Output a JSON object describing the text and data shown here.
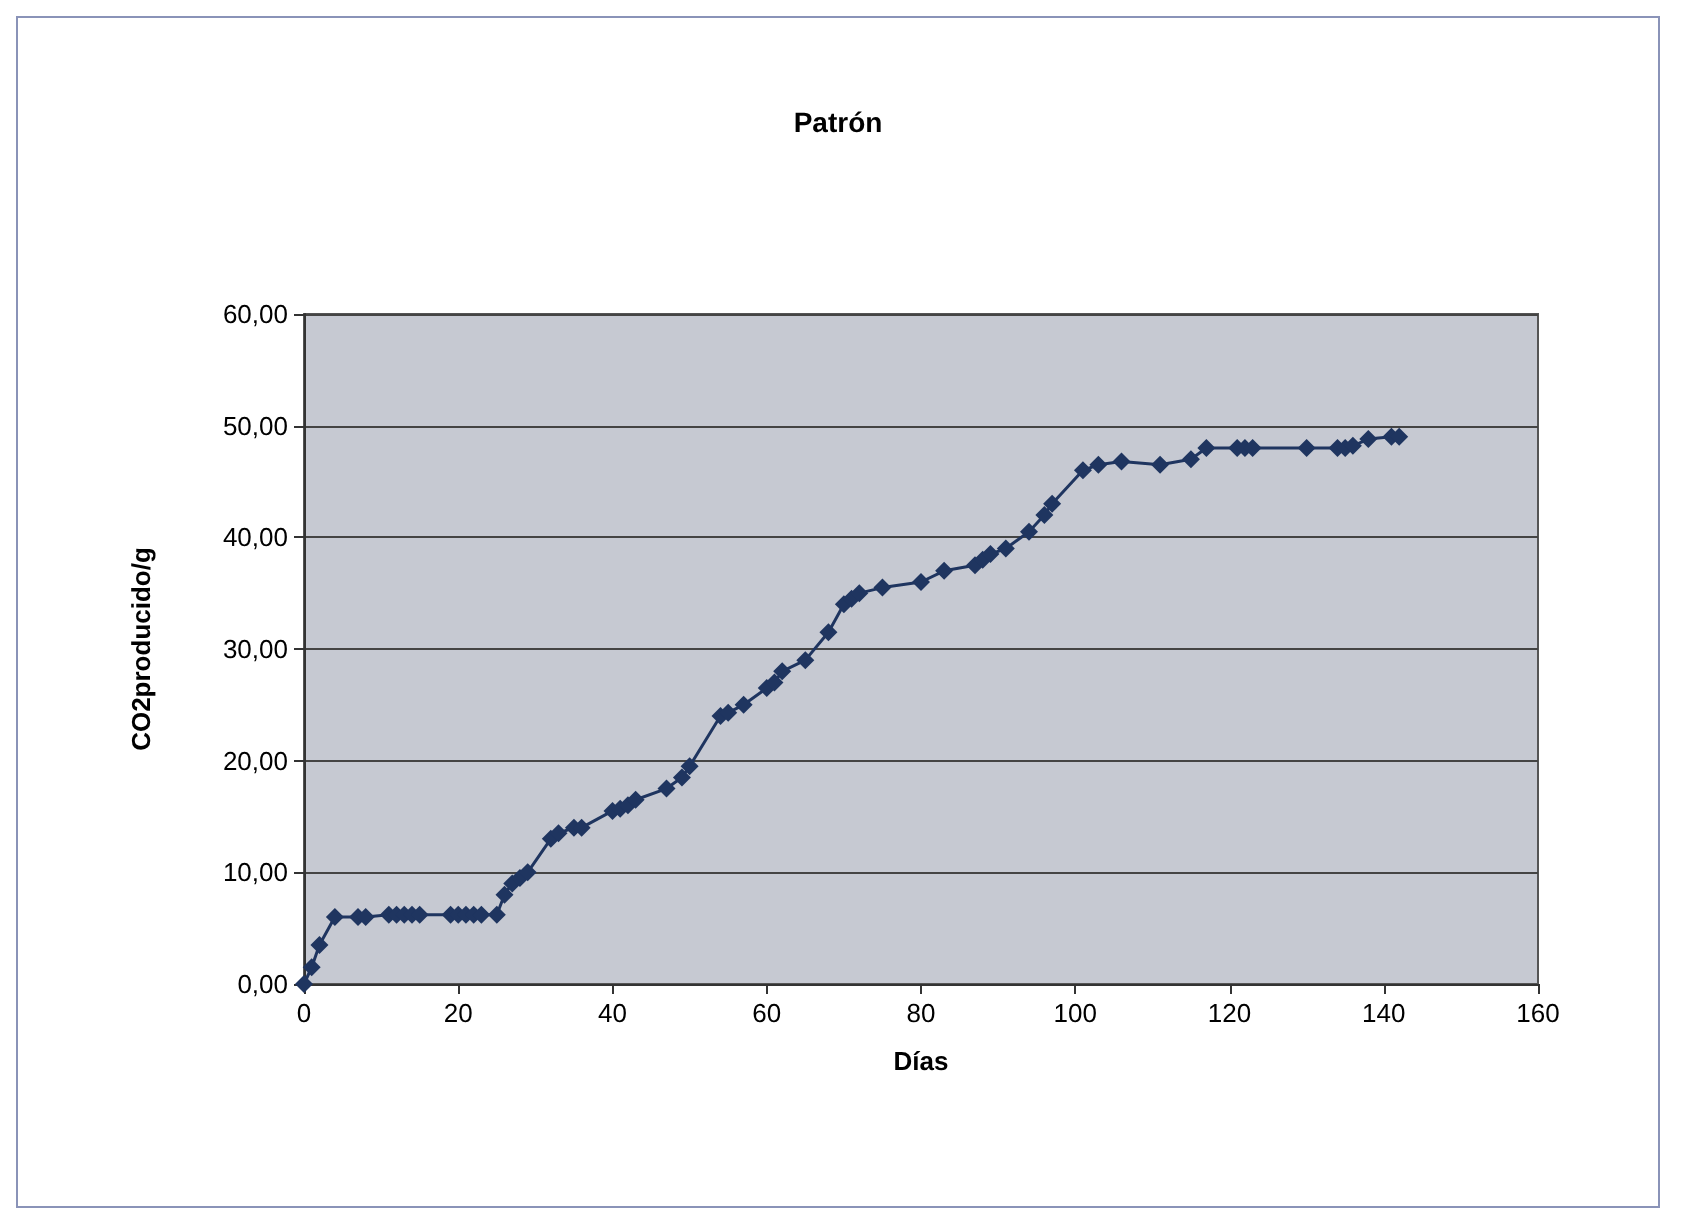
{
  "chart_data": {
    "type": "line",
    "title": "Patrón",
    "xlabel": "Días",
    "ylabel": "CO2producido/g",
    "xlim": [
      0,
      160
    ],
    "xticks": [
      0,
      20,
      40,
      60,
      80,
      100,
      120,
      140,
      160
    ],
    "ylim": [
      0,
      60
    ],
    "yticks": [
      {
        "value": 0,
        "label": "0,00"
      },
      {
        "value": 10,
        "label": "10,00"
      },
      {
        "value": 20,
        "label": "20,00"
      },
      {
        "value": 30,
        "label": "30,00"
      },
      {
        "value": 40,
        "label": "40,00"
      },
      {
        "value": 50,
        "label": "50,00"
      },
      {
        "value": 60,
        "label": "60,00"
      }
    ],
    "grid": "y",
    "marker": "diamond",
    "line_style": "solid",
    "series": [
      {
        "color": "#1f3560",
        "x": [
          0,
          1,
          2,
          4,
          7,
          8,
          11,
          12,
          13,
          14,
          15,
          19,
          20,
          21,
          22,
          23,
          25,
          26,
          27,
          28,
          29,
          32,
          33,
          35,
          36,
          40,
          41,
          42,
          43,
          47,
          49,
          50,
          54,
          55,
          57,
          60,
          61,
          62,
          65,
          68,
          70,
          71,
          72,
          75,
          80,
          83,
          87,
          88,
          89,
          91,
          94,
          96,
          97,
          101,
          103,
          106,
          111,
          115,
          117,
          121,
          122,
          123,
          130,
          134,
          135,
          136,
          138,
          141,
          142
        ],
        "values": [
          0,
          1.5,
          3.5,
          6,
          6,
          6,
          6.2,
          6.2,
          6.2,
          6.2,
          6.2,
          6.2,
          6.2,
          6.2,
          6.2,
          6.2,
          6.2,
          8,
          9,
          9.5,
          10,
          13,
          13.5,
          14,
          14,
          15.5,
          15.7,
          16,
          16.5,
          17.5,
          18.5,
          19.5,
          24,
          24.3,
          25,
          26.5,
          27,
          28,
          29,
          31.5,
          34,
          34.5,
          35,
          35.5,
          36,
          37,
          37.5,
          38,
          38.5,
          39,
          40.5,
          42,
          43,
          46,
          46.5,
          46.8,
          46.5,
          47,
          48,
          48,
          48,
          48,
          48,
          48,
          48,
          48.2,
          48.8,
          49,
          49
        ]
      }
    ]
  }
}
